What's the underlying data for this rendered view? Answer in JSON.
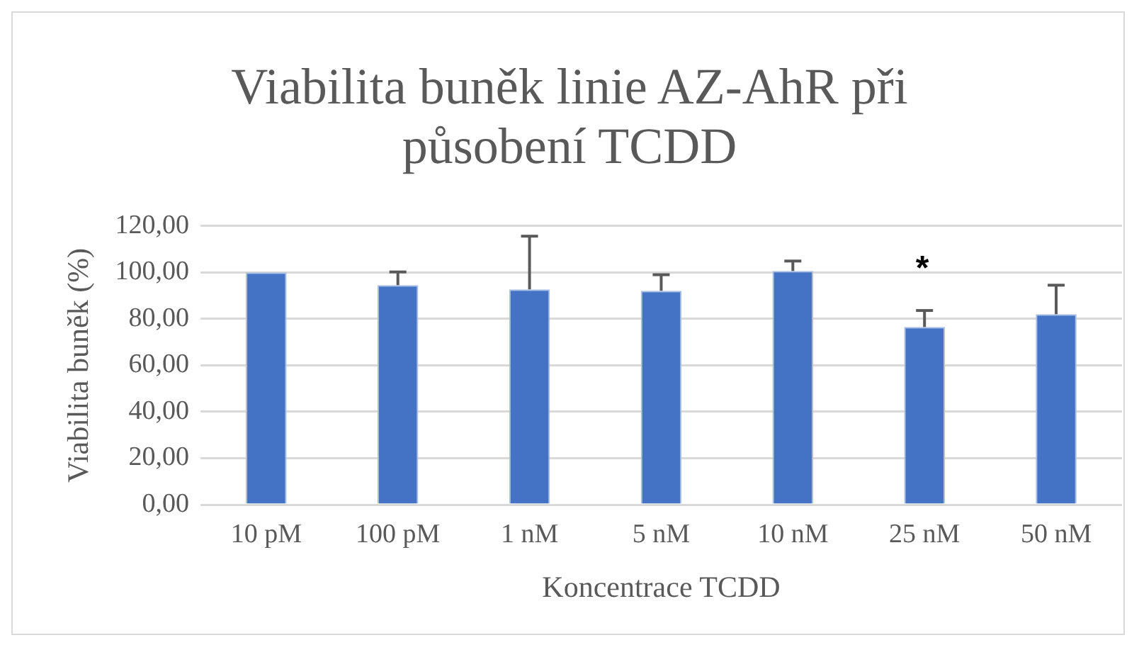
{
  "chart_data": {
    "type": "bar",
    "title": "Viabilita buněk linie AZ-AhR při působení TCDD",
    "xlabel": "Koncentrace TCDD",
    "ylabel": "Viabilita buněk (%)",
    "categories": [
      "10 pM",
      "100 pM",
      "1 nM",
      "5 nM",
      "10 nM",
      "25 nM",
      "50 nM"
    ],
    "values": [
      100,
      94.5,
      92.7,
      92.1,
      100.6,
      76.5,
      82
    ],
    "errors": [
      null,
      [
        94.5,
        100.2
      ],
      [
        92.7,
        115.6
      ],
      [
        92.1,
        99
      ],
      [
        100.6,
        104.9
      ],
      [
        76.5,
        83.6
      ],
      [
        82,
        94.5
      ]
    ],
    "color": "#4472c4",
    "ylim": [
      0,
      120
    ],
    "yticks": [
      {
        "value": 0,
        "label": "0,00"
      },
      {
        "value": 20,
        "label": "20,00"
      },
      {
        "value": 40,
        "label": "40,00"
      },
      {
        "value": 60,
        "label": "60,00"
      },
      {
        "value": 80,
        "label": "80,00"
      },
      {
        "value": 100,
        "label": "100,00"
      },
      {
        "value": 120,
        "label": "120,00"
      }
    ],
    "grid": "y",
    "legend": false,
    "annotations": [
      "*"
    ]
  }
}
